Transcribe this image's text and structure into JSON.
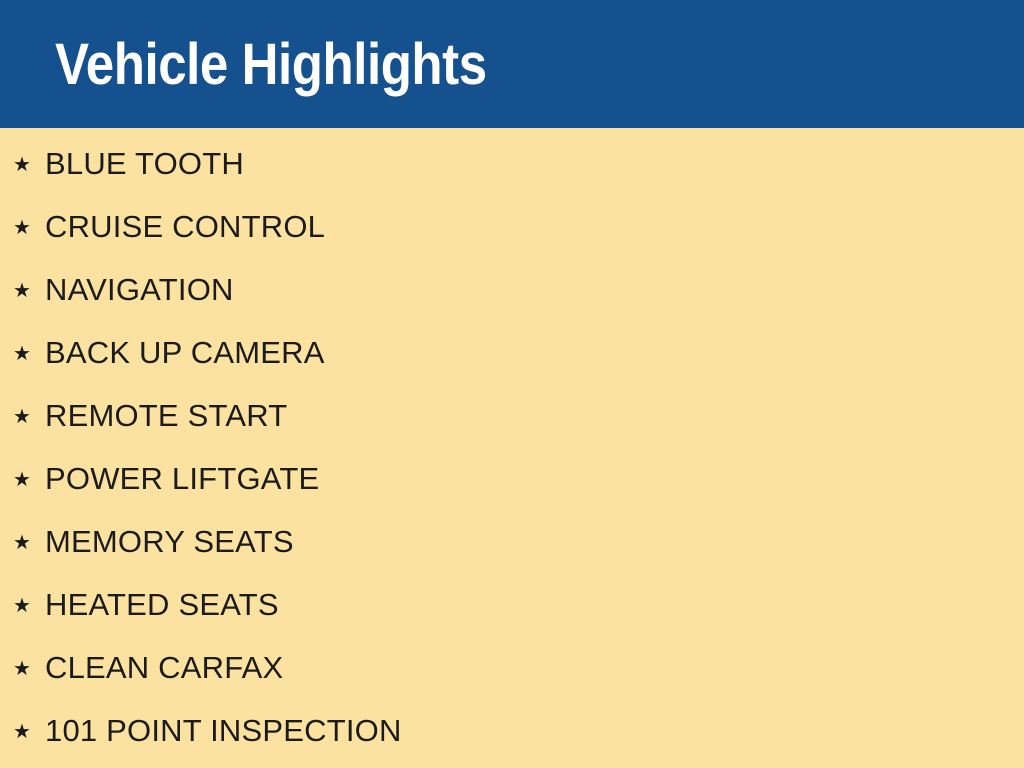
{
  "slide": {
    "title": "Vehicle Highlights",
    "bullet_glyph": "★",
    "items": [
      "BLUE TOOTH",
      "CRUISE CONTROL",
      "NAVIGATION",
      "BACK UP CAMERA",
      "REMOTE START",
      "POWER LIFTGATE",
      "MEMORY SEATS",
      "HEATED SEATS",
      "CLEAN CARFAX",
      "101 POINT INSPECTION"
    ],
    "colors": {
      "header_bg": "#15518F",
      "body_bg": "#FBE2A0",
      "title_text": "#FFFFFF",
      "item_text": "#1B1B1B"
    }
  }
}
